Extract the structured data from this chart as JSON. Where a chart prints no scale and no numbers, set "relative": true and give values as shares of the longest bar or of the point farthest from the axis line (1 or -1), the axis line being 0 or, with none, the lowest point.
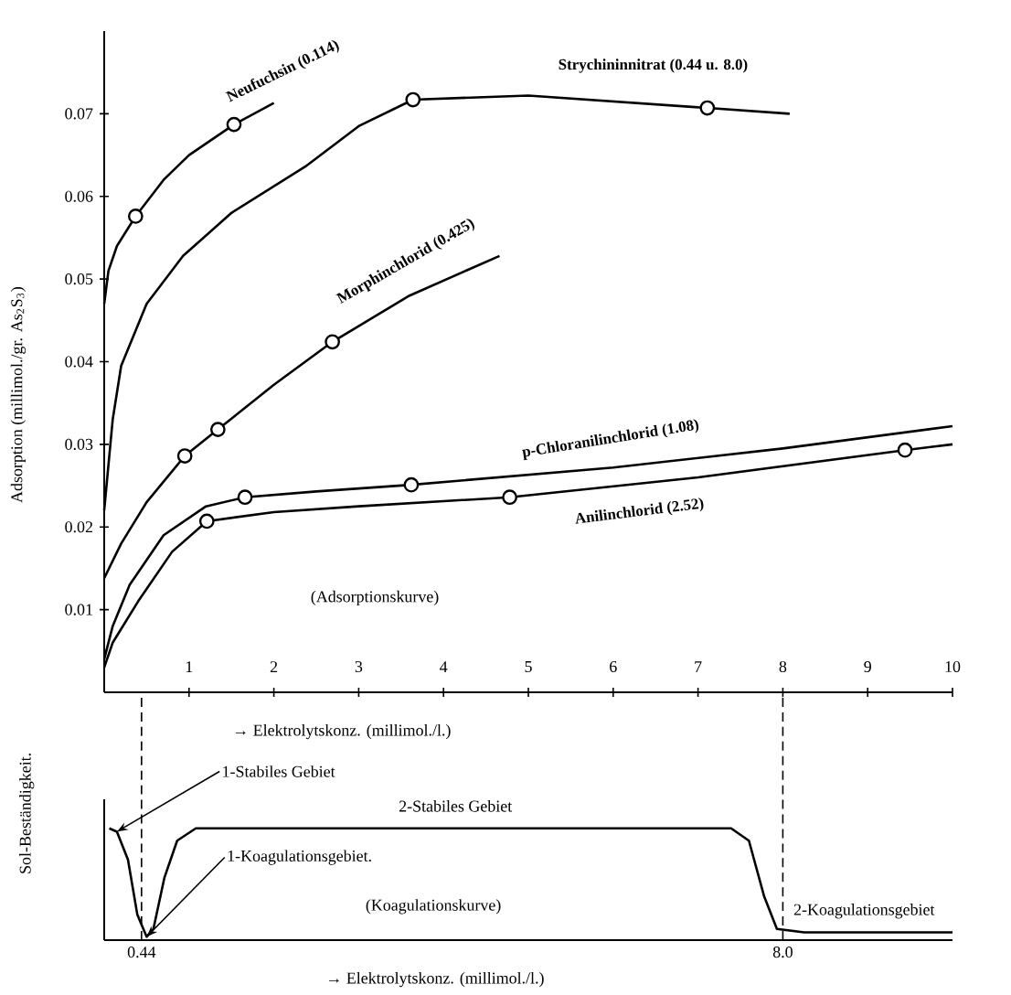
{
  "chart_data": [
    {
      "type": "line",
      "ylabel": "Adsorption (millimol./gr. As$_{2}$S$_{3}$)",
      "xlabel": "→ Elektrolytskonz. (millimol./l.)",
      "xlim": [
        0,
        10
      ],
      "ylim": [
        0,
        0.08
      ],
      "xticks": [
        1,
        2,
        3,
        4,
        5,
        6,
        7,
        8,
        9,
        10
      ],
      "yticks": [
        0.01,
        0.02,
        0.03,
        0.04,
        0.05,
        0.06,
        0.07
      ],
      "annotations": [
        "(Adsorptionskurve)"
      ],
      "series": [
        {
          "name": "Neufuchsin (0.114)",
          "color": "#000000",
          "marker": "none",
          "x": [
            0,
            0.05,
            0.15,
            0.37,
            0.7,
            1.0,
            1.53,
            2.0
          ],
          "values": [
            0.047,
            0.051,
            0.054,
            0.0576,
            0.062,
            0.065,
            0.0687,
            0.0713
          ]
        },
        {
          "type": "scatter",
          "color": "#000000",
          "marker": "circle",
          "x": [
            0.37,
            1.53
          ],
          "values": [
            0.0576,
            0.0687
          ]
        },
        {
          "name": "Strychininnitrat (0.44 u. 8.0)",
          "color": "#000000",
          "marker": "none",
          "x": [
            0,
            0.1,
            0.2,
            0.5,
            0.93,
            1.5,
            2.37,
            3.0,
            3.64,
            5.0,
            7.11,
            8.08
          ],
          "values": [
            0.022,
            0.033,
            0.0395,
            0.047,
            0.0528,
            0.058,
            0.0636,
            0.0685,
            0.0717,
            0.0722,
            0.0707,
            0.07
          ]
        },
        {
          "type": "scatter",
          "color": "#000000",
          "marker": "circle",
          "x": [
            3.64,
            7.11
          ],
          "values": [
            0.0717,
            0.0707
          ]
        },
        {
          "name": "Morphinchlorid (0.425)",
          "color": "#000000",
          "marker": "none",
          "x": [
            0,
            0.2,
            0.5,
            0.95,
            1.34,
            2.0,
            2.69,
            3.6,
            4.66
          ],
          "values": [
            0.0138,
            0.018,
            0.023,
            0.0286,
            0.0318,
            0.0372,
            0.0424,
            0.048,
            0.0528
          ]
        },
        {
          "type": "scatter",
          "color": "#000000",
          "marker": "circle",
          "x": [
            0.95,
            1.34,
            2.69
          ],
          "values": [
            0.0286,
            0.0318,
            0.0424
          ]
        },
        {
          "name": "p-Chloranilinchlorid (1.08)",
          "color": "#000000",
          "marker": "none",
          "x": [
            0,
            0.1,
            0.3,
            0.7,
            1.2,
            1.66,
            2.5,
            3.62,
            6.0,
            8.0,
            10.0
          ],
          "values": [
            0.004,
            0.008,
            0.013,
            0.019,
            0.0225,
            0.0236,
            0.0243,
            0.0251,
            0.0272,
            0.0295,
            0.0322
          ]
        },
        {
          "type": "scatter",
          "color": "#000000",
          "marker": "circle",
          "x": [
            1.66,
            3.62
          ],
          "values": [
            0.0236,
            0.0251
          ]
        },
        {
          "name": "Anilinchlorid (2.52)",
          "color": "#000000",
          "marker": "none",
          "x": [
            0,
            0.1,
            0.4,
            0.8,
            1.21,
            2.0,
            3.0,
            4.78,
            7.0,
            9.44,
            10.0
          ],
          "values": [
            0.003,
            0.006,
            0.011,
            0.017,
            0.0207,
            0.0218,
            0.0225,
            0.0236,
            0.026,
            0.0293,
            0.03
          ]
        },
        {
          "type": "scatter",
          "color": "#000000",
          "marker": "circle",
          "x": [
            1.21,
            4.78,
            9.44
          ],
          "values": [
            0.0207,
            0.0236,
            0.0293
          ]
        }
      ]
    },
    {
      "type": "line",
      "relative": true,
      "ylabel": "Sol-Beständigkeit.",
      "xlabel": "→ Elektrolytskonz. (millimol./l.)",
      "xlim": [
        0,
        10
      ],
      "xticks": [
        {
          "value": 0.44,
          "label": "0.44"
        },
        {
          "value": 8.0,
          "label": "8.0"
        }
      ],
      "tick_labels": "x",
      "ref_lines": [
        {
          "axis": "x",
          "value": 0.44,
          "line_style": "dashed"
        },
        {
          "axis": "x",
          "value": 8.0,
          "line_style": "dashed"
        }
      ],
      "annotations": [
        {
          "text": "1-Stabiles Gebiet",
          "x": 0.15,
          "y": 0.97
        },
        "2-Stabiles Gebiet",
        {
          "text": "1-Koagulationsgebiet.",
          "x": 0.5,
          "y": 0.03
        },
        "(Koagulationskurve)",
        "2-Koagulationsgebiet"
      ],
      "series": [
        {
          "color": "#000000",
          "marker": "none",
          "x": [
            0.06,
            0.15,
            0.28,
            0.39,
            0.5,
            0.58,
            0.71,
            0.86,
            1.08,
            7.39,
            7.6,
            7.78,
            7.93,
            8.25,
            10.0
          ],
          "values": [
            1.0,
            0.97,
            0.72,
            0.23,
            0.03,
            0.1,
            0.56,
            0.89,
            1.0,
            1.0,
            0.89,
            0.39,
            0.1,
            0.07,
            0.07
          ]
        }
      ]
    }
  ]
}
